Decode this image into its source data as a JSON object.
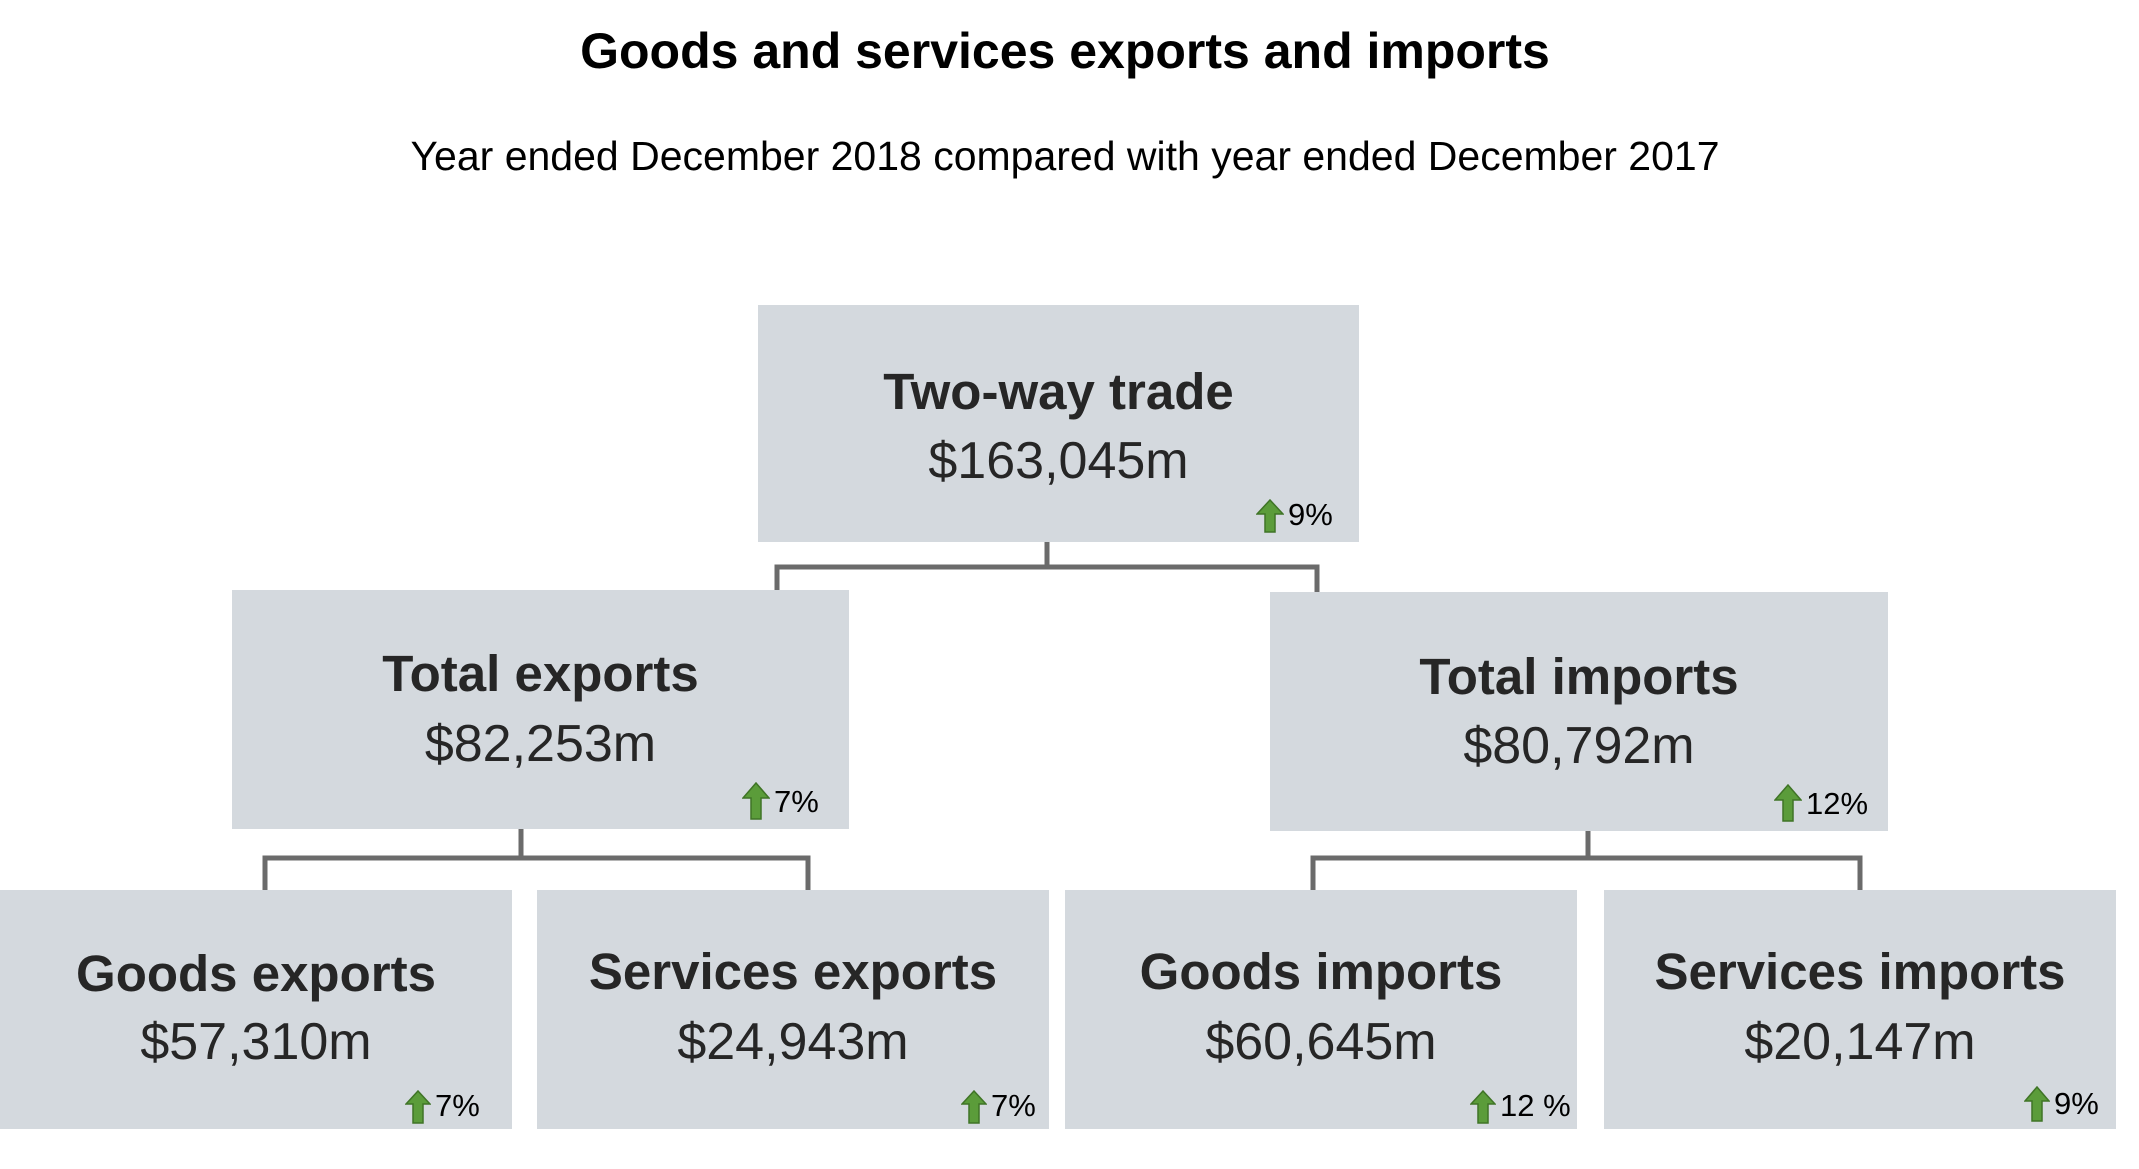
{
  "title": "Goods and services exports and imports",
  "subtitle": "Year ended December 2018 compared with year ended December 2017",
  "colors": {
    "box_fill": "#d4d9de",
    "connector": "#6b6b6b",
    "arrow_up": "#5b9c3a"
  },
  "nodes": {
    "two_way_trade": {
      "label": "Two-way trade",
      "value": "$163,045m",
      "change": "9%",
      "direction": "up-arrow-icon"
    },
    "total_exports": {
      "label": "Total exports",
      "value": "$82,253m",
      "change": "7%",
      "direction": "up-arrow-icon"
    },
    "total_imports": {
      "label": "Total imports",
      "value": "$80,792m",
      "change": "12%",
      "direction": "up-arrow-icon"
    },
    "goods_exports": {
      "label": "Goods exports",
      "value": "$57,310m",
      "change": "7%",
      "direction": "up-arrow-icon"
    },
    "services_exports": {
      "label": "Services exports",
      "value": "$24,943m",
      "change": "7%",
      "direction": "up-arrow-icon"
    },
    "goods_imports": {
      "label": "Goods imports",
      "value": "$60,645m",
      "change": "12 %",
      "direction": "up-arrow-icon"
    },
    "services_imports": {
      "label": "Services imports",
      "value": "$20,147m",
      "change": "9%",
      "direction": "up-arrow-icon"
    }
  }
}
